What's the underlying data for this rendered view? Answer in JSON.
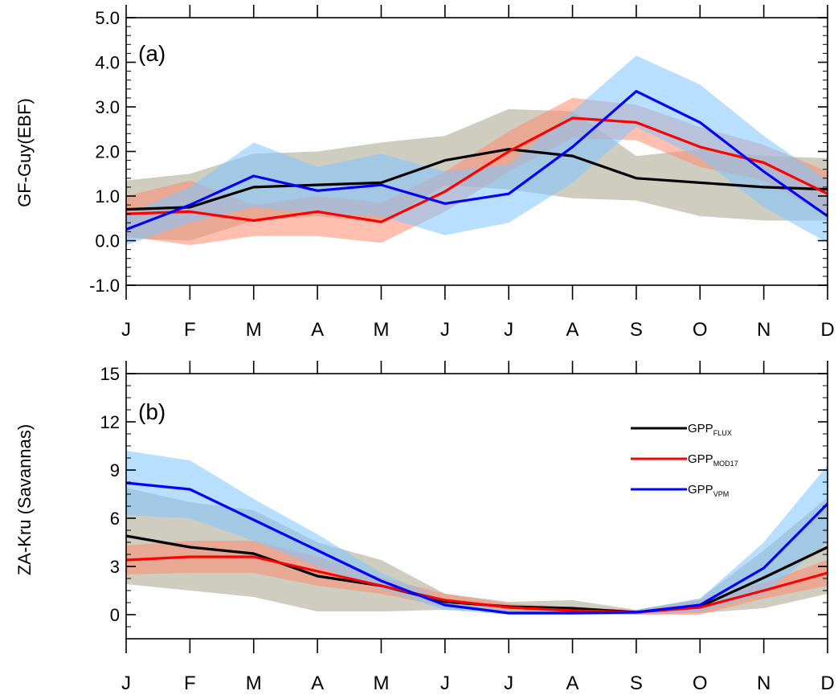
{
  "chart_data": [
    {
      "type": "line",
      "panel_label": "(a)",
      "ylabel": "GF-Guy(EBF)",
      "categories": [
        "J",
        "F",
        "M",
        "A",
        "M",
        "J",
        "J",
        "A",
        "S",
        "O",
        "N",
        "D"
      ],
      "ylim": [
        -1.0,
        5.0
      ],
      "yticks": [
        "-1.0",
        "0.0",
        "1.0",
        "2.0",
        "3.0",
        "4.0",
        "5.0"
      ],
      "ytick_values": [
        -1,
        0,
        1,
        2,
        3,
        4,
        5
      ],
      "grid": false,
      "series": [
        {
          "key": "flux",
          "color": "#000000",
          "band_color": "#a8a38c",
          "values": [
            0.7,
            0.75,
            1.2,
            1.25,
            1.3,
            1.8,
            2.05,
            1.9,
            1.4,
            1.3,
            1.2,
            1.15
          ],
          "upper": [
            1.35,
            1.5,
            1.95,
            2.0,
            2.2,
            2.35,
            2.95,
            2.9,
            1.9,
            2.05,
            1.9,
            1.85
          ],
          "lower": [
            0.05,
            0.0,
            0.45,
            0.55,
            0.4,
            1.25,
            1.15,
            0.95,
            0.9,
            0.55,
            0.45,
            0.45
          ]
        },
        {
          "key": "mod17",
          "color": "#ff0000",
          "band_color": "#ff8a6e",
          "values": [
            0.6,
            0.65,
            0.45,
            0.65,
            0.42,
            1.1,
            2.0,
            2.75,
            2.65,
            2.1,
            1.75,
            1.05
          ],
          "upper": [
            1.0,
            1.35,
            0.8,
            1.0,
            0.85,
            1.55,
            2.45,
            3.2,
            3.05,
            2.55,
            2.15,
            1.55
          ],
          "lower": [
            0.1,
            -0.1,
            0.1,
            0.1,
            -0.05,
            0.65,
            1.55,
            2.3,
            2.25,
            1.65,
            1.35,
            0.55
          ]
        },
        {
          "key": "vpm",
          "color": "#0000ff",
          "band_color": "#7dc4ff",
          "values": [
            0.25,
            0.8,
            1.45,
            1.12,
            1.25,
            0.83,
            1.05,
            2.1,
            3.35,
            2.65,
            1.55,
            0.55
          ],
          "upper": [
            0.6,
            1.2,
            2.2,
            1.65,
            1.95,
            1.55,
            1.7,
            2.9,
            4.15,
            3.5,
            2.35,
            1.35
          ],
          "lower": [
            -0.1,
            0.4,
            0.75,
            0.6,
            0.55,
            0.12,
            0.4,
            1.3,
            2.55,
            1.85,
            0.75,
            -0.05
          ]
        }
      ]
    },
    {
      "type": "line",
      "panel_label": "(b)",
      "ylabel": "ZA-Kru (Savannas)",
      "categories": [
        "J",
        "F",
        "M",
        "A",
        "M",
        "J",
        "J",
        "A",
        "S",
        "O",
        "N",
        "D"
      ],
      "ylim": [
        -1.5,
        15
      ],
      "yticks": [
        "0",
        "3",
        "6",
        "9",
        "12",
        "15"
      ],
      "ytick_values": [
        0,
        3,
        6,
        9,
        12,
        15
      ],
      "grid": false,
      "legend": {
        "position": "top-right",
        "entries": [
          {
            "key": "flux",
            "main": "GPP",
            "sub": "FLUX"
          },
          {
            "key": "mod17",
            "main": "GPP",
            "sub": "MOD17"
          },
          {
            "key": "vpm",
            "main": "GPP",
            "sub": "VPM"
          }
        ]
      },
      "series": [
        {
          "key": "flux",
          "color": "#000000",
          "band_color": "#a8a38c",
          "values": [
            4.9,
            4.2,
            3.8,
            2.4,
            1.8,
            0.8,
            0.5,
            0.4,
            0.15,
            0.5,
            2.3,
            4.2
          ],
          "upper": [
            7.9,
            7.0,
            6.5,
            4.5,
            3.4,
            1.3,
            0.8,
            0.9,
            0.3,
            1.0,
            4.0,
            7.3
          ],
          "lower": [
            1.9,
            1.5,
            1.1,
            0.2,
            0.2,
            0.3,
            0.2,
            0.0,
            0.0,
            0.1,
            0.4,
            1.3
          ]
        },
        {
          "key": "mod17",
          "color": "#ff0000",
          "band_color": "#ff8a6e",
          "values": [
            3.4,
            3.6,
            3.6,
            2.7,
            1.8,
            0.9,
            0.45,
            0.25,
            0.15,
            0.45,
            1.5,
            2.6
          ],
          "upper": [
            4.3,
            4.6,
            4.6,
            3.6,
            2.3,
            1.3,
            0.7,
            0.45,
            0.3,
            0.9,
            2.0,
            3.4
          ],
          "lower": [
            2.5,
            2.6,
            2.6,
            1.8,
            1.3,
            0.5,
            0.2,
            0.05,
            0.0,
            0.0,
            1.0,
            1.8
          ]
        },
        {
          "key": "vpm",
          "color": "#0000ff",
          "band_color": "#7dc4ff",
          "values": [
            8.2,
            7.8,
            5.9,
            4.0,
            2.1,
            0.6,
            0.1,
            0.1,
            0.15,
            0.6,
            2.9,
            6.9
          ],
          "upper": [
            10.2,
            9.6,
            7.2,
            5.0,
            2.6,
            0.9,
            0.3,
            0.3,
            0.3,
            1.0,
            4.5,
            9.3
          ],
          "lower": [
            6.2,
            6.0,
            4.6,
            3.0,
            1.6,
            0.3,
            0.0,
            0.0,
            0.0,
            0.2,
            1.3,
            4.5
          ]
        }
      ]
    }
  ]
}
